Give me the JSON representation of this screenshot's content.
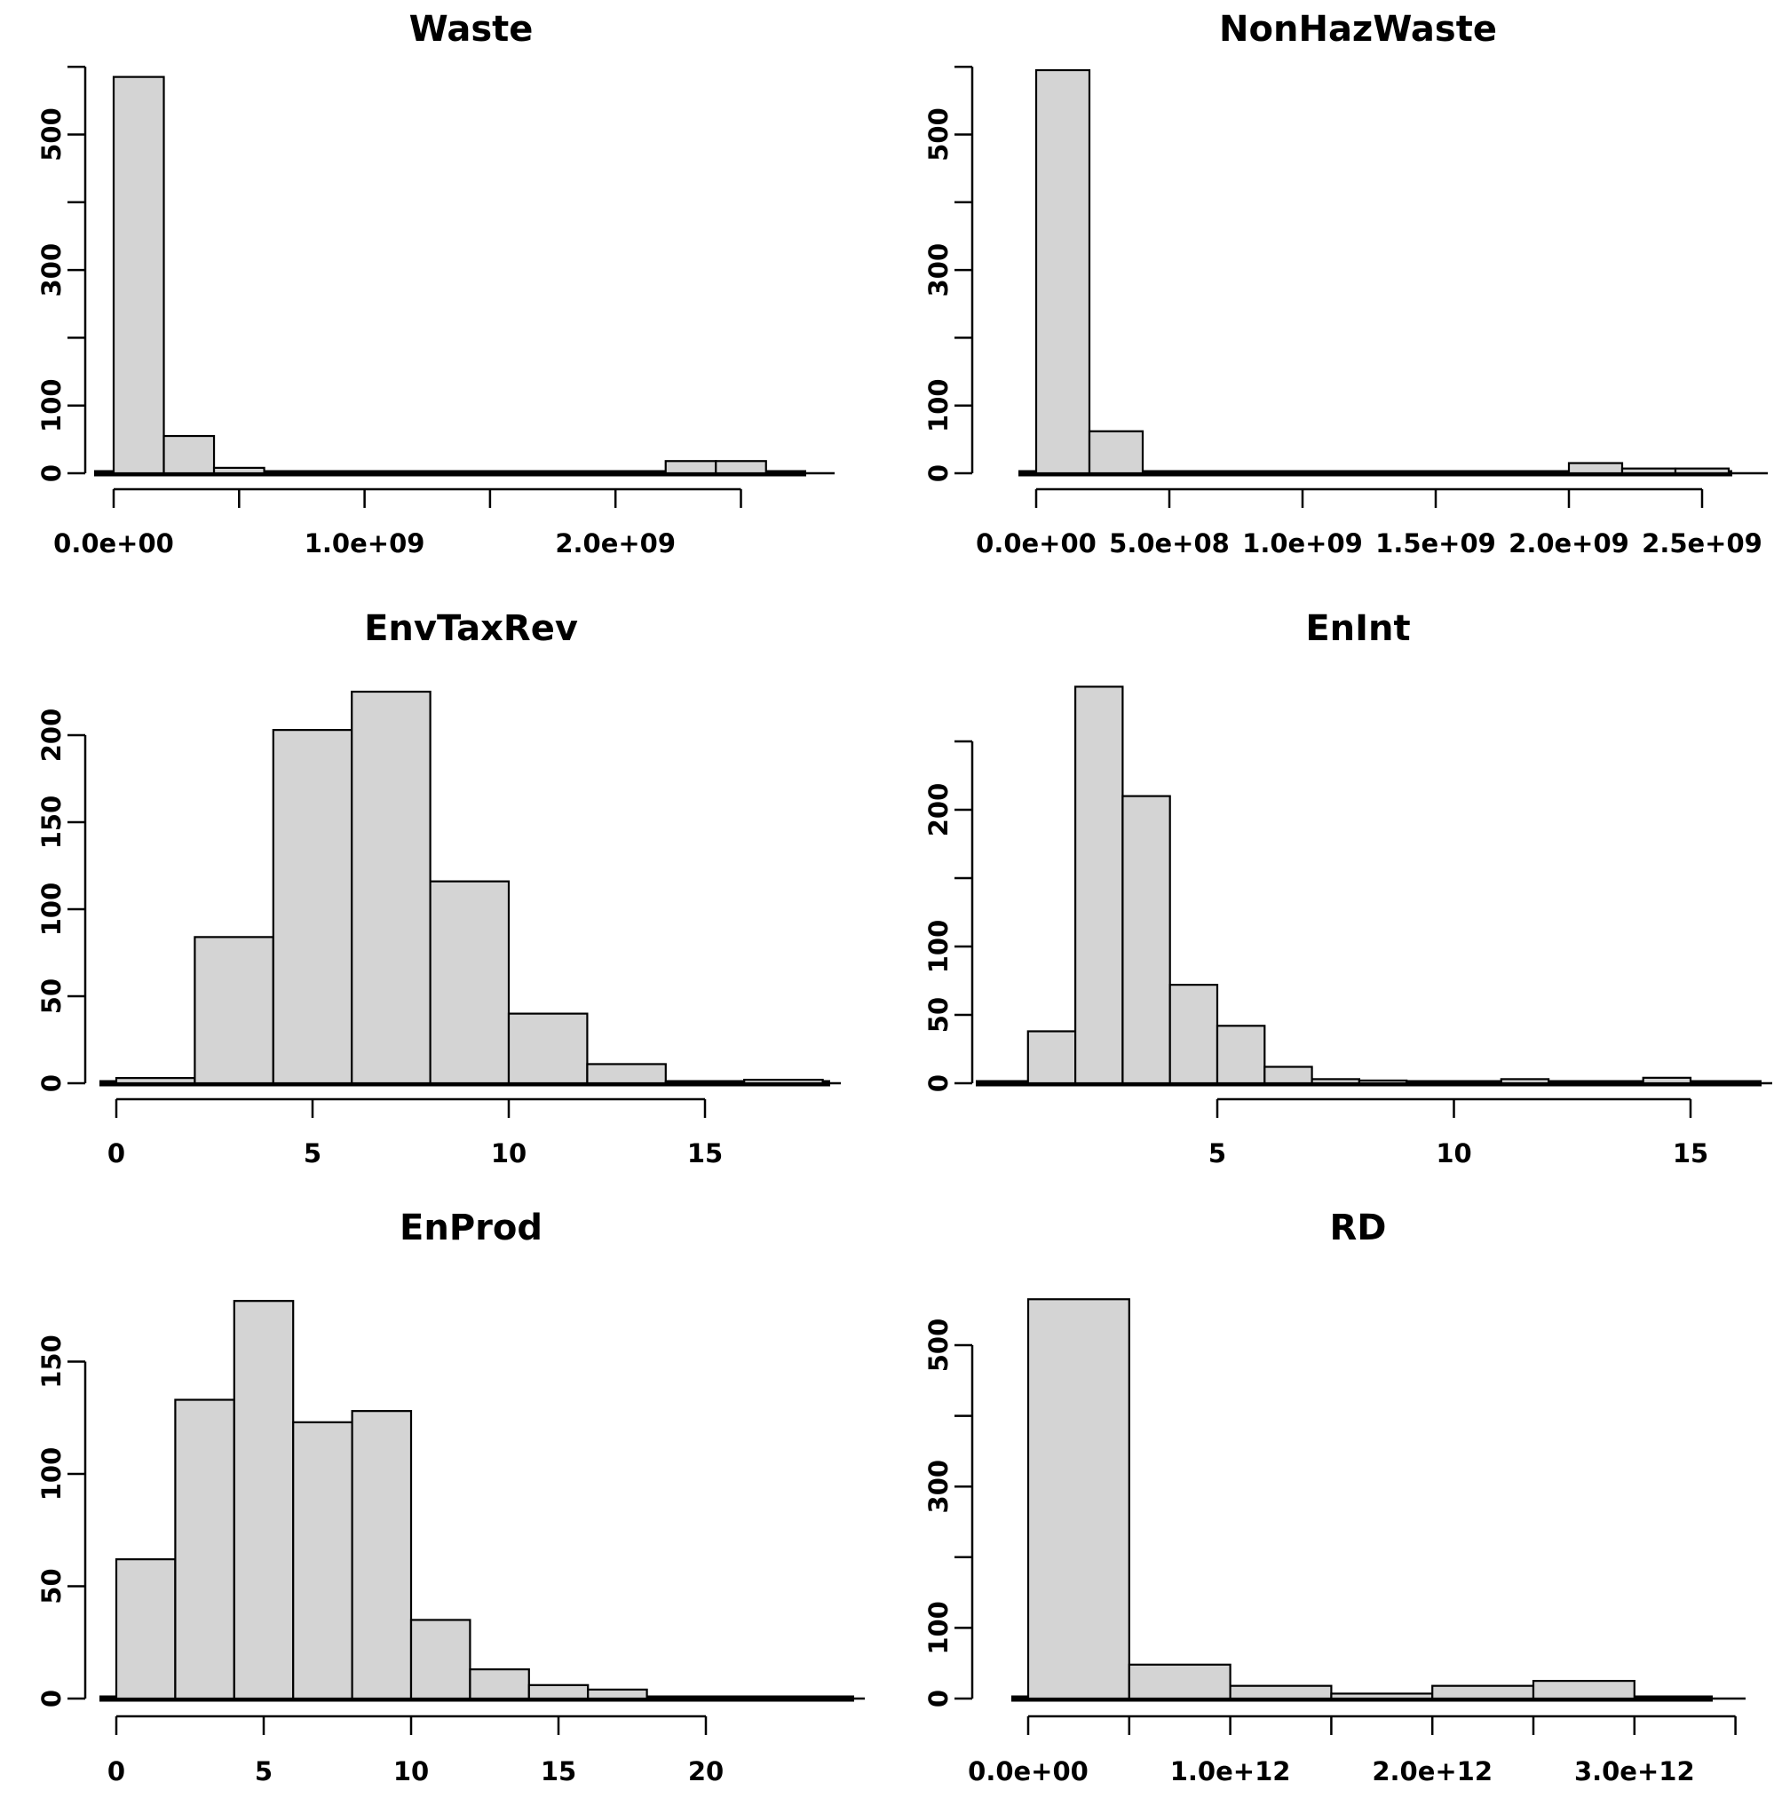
{
  "page": {
    "background": "#ffffff",
    "description": "Grid of six histograms of environmental variables"
  },
  "colors": {
    "bar_fill": "#d4d4d4",
    "bar_border": "#000000",
    "axis": "#000000",
    "text": "#000000"
  },
  "chart_data": [
    {
      "type": "bar",
      "style": "histogram",
      "title": "Waste",
      "xlabel": "",
      "ylabel": "",
      "ylim": [
        0,
        620
      ],
      "bins": {
        "start": 0,
        "width": 200000000.0,
        "counts": [
          585,
          55,
          8,
          0,
          0,
          0,
          0,
          0,
          0,
          0,
          0,
          18,
          18
        ]
      },
      "x_ticks": [
        {
          "v": 0.0,
          "label": "0.0e+00"
        },
        {
          "v": 500000000.0,
          "label": ""
        },
        {
          "v": 1000000000.0,
          "label": "1.0e+09"
        },
        {
          "v": 1500000000.0,
          "label": ""
        },
        {
          "v": 2000000000.0,
          "label": "2.0e+09"
        },
        {
          "v": 2500000000.0,
          "label": ""
        }
      ],
      "y_ticks": [
        {
          "v": 0,
          "label": "0"
        },
        {
          "v": 100,
          "label": "100"
        },
        {
          "v": 200,
          "label": ""
        },
        {
          "v": 300,
          "label": "300"
        },
        {
          "v": 400,
          "label": ""
        },
        {
          "v": 500,
          "label": "500"
        },
        {
          "v": 600,
          "label": ""
        }
      ]
    },
    {
      "type": "bar",
      "style": "histogram",
      "title": "NonHazWaste",
      "xlabel": "",
      "ylabel": "",
      "ylim": [
        0,
        620
      ],
      "bins": {
        "start": 0,
        "width": 200000000.0,
        "counts": [
          595,
          62,
          0,
          0,
          0,
          0,
          0,
          0,
          0,
          0,
          15,
          7,
          7
        ]
      },
      "x_ticks": [
        {
          "v": 0.0,
          "label": "0.0e+00"
        },
        {
          "v": 500000000.0,
          "label": "5.0e+08"
        },
        {
          "v": 1000000000.0,
          "label": "1.0e+09"
        },
        {
          "v": 1500000000.0,
          "label": "1.5e+09"
        },
        {
          "v": 2000000000.0,
          "label": "2.0e+09"
        },
        {
          "v": 2500000000.0,
          "label": "2.5e+09"
        }
      ],
      "y_ticks": [
        {
          "v": 0,
          "label": "0"
        },
        {
          "v": 100,
          "label": "100"
        },
        {
          "v": 200,
          "label": ""
        },
        {
          "v": 300,
          "label": "300"
        },
        {
          "v": 400,
          "label": ""
        },
        {
          "v": 500,
          "label": "500"
        },
        {
          "v": 600,
          "label": ""
        }
      ]
    },
    {
      "type": "bar",
      "style": "histogram",
      "title": "EnvTaxRev",
      "xlabel": "",
      "ylabel": "",
      "ylim": [
        0,
        230
      ],
      "bins": {
        "start": 0,
        "width": 2,
        "counts": [
          3,
          84,
          203,
          225,
          116,
          40,
          11,
          1,
          2
        ]
      },
      "x_ticks": [
        {
          "v": 0,
          "label": "0"
        },
        {
          "v": 5,
          "label": "5"
        },
        {
          "v": 10,
          "label": "10"
        },
        {
          "v": 15,
          "label": "15"
        }
      ],
      "y_ticks": [
        {
          "v": 0,
          "label": "0"
        },
        {
          "v": 50,
          "label": "50"
        },
        {
          "v": 100,
          "label": "100"
        },
        {
          "v": 150,
          "label": "150"
        },
        {
          "v": 200,
          "label": "200"
        }
      ]
    },
    {
      "type": "bar",
      "style": "histogram",
      "title": "EnInt",
      "xlabel": "",
      "ylabel": "",
      "ylim": [
        0,
        295
      ],
      "bins": {
        "start": 1,
        "width": 1,
        "counts": [
          38,
          290,
          210,
          72,
          42,
          12,
          3,
          2,
          1,
          0,
          3,
          1,
          0,
          4
        ]
      },
      "x_ticks": [
        {
          "v": 5,
          "label": "5"
        },
        {
          "v": 10,
          "label": "10"
        },
        {
          "v": 15,
          "label": "15"
        }
      ],
      "y_ticks": [
        {
          "v": 0,
          "label": "0"
        },
        {
          "v": 50,
          "label": "50"
        },
        {
          "v": 100,
          "label": "100"
        },
        {
          "v": 150,
          "label": ""
        },
        {
          "v": 200,
          "label": "200"
        },
        {
          "v": 250,
          "label": ""
        }
      ]
    },
    {
      "type": "bar",
      "style": "histogram",
      "title": "EnProd",
      "xlabel": "",
      "ylabel": "",
      "ylim": [
        0,
        180
      ],
      "bins": {
        "start": 0,
        "width": 2,
        "counts": [
          62,
          133,
          177,
          123,
          128,
          35,
          13,
          6,
          4
        ]
      },
      "x_ticks": [
        {
          "v": 0,
          "label": "0"
        },
        {
          "v": 5,
          "label": "5"
        },
        {
          "v": 10,
          "label": "10"
        },
        {
          "v": 15,
          "label": "15"
        },
        {
          "v": 20,
          "label": "20"
        }
      ],
      "y_ticks": [
        {
          "v": 0,
          "label": "0"
        },
        {
          "v": 50,
          "label": "50"
        },
        {
          "v": 100,
          "label": "100"
        },
        {
          "v": 150,
          "label": "150"
        }
      ]
    },
    {
      "type": "bar",
      "style": "histogram",
      "title": "RD",
      "xlabel": "",
      "ylabel": "",
      "ylim": [
        0,
        580
      ],
      "bins": {
        "start": 0,
        "width": 500000000000.0,
        "counts": [
          565,
          48,
          18,
          7,
          18,
          25
        ]
      },
      "x_ticks": [
        {
          "v": 0,
          "label": "0.0e+00"
        },
        {
          "v": 500000000000.0,
          "label": ""
        },
        {
          "v": 1000000000000.0,
          "label": "1.0e+12"
        },
        {
          "v": 1500000000000.0,
          "label": ""
        },
        {
          "v": 2000000000000.0,
          "label": "2.0e+12"
        },
        {
          "v": 2500000000000.0,
          "label": ""
        },
        {
          "v": 3000000000000.0,
          "label": "3.0e+12"
        },
        {
          "v": 3500000000000.0,
          "label": ""
        }
      ],
      "y_ticks": [
        {
          "v": 0,
          "label": "0"
        },
        {
          "v": 100,
          "label": "100"
        },
        {
          "v": 200,
          "label": ""
        },
        {
          "v": 300,
          "label": "300"
        },
        {
          "v": 400,
          "label": ""
        },
        {
          "v": 500,
          "label": "500"
        }
      ]
    }
  ]
}
